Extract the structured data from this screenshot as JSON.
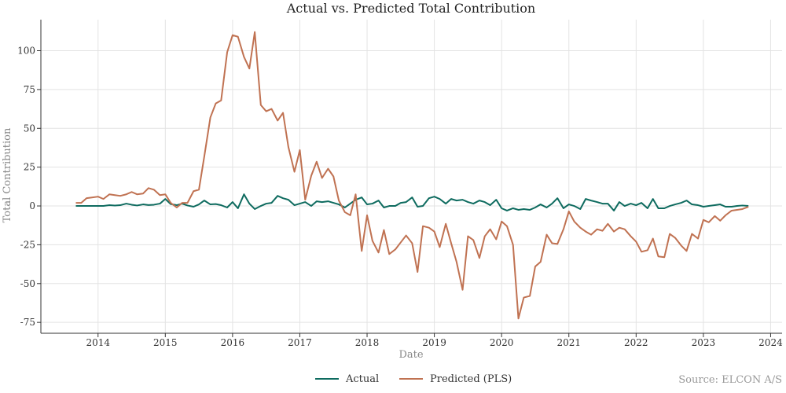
{
  "chart_data": {
    "type": "line",
    "title": "Actual vs. Predicted Total Contribution",
    "xlabel": "Date",
    "ylabel": "Total Contribution",
    "x_ticks": [
      "2014",
      "2015",
      "2016",
      "2017",
      "2018",
      "2019",
      "2020",
      "2021",
      "2022",
      "2023",
      "2024"
    ],
    "y_ticks": [
      -75,
      -50,
      -25,
      0,
      25,
      50,
      75,
      100
    ],
    "xlim": [
      2013.15,
      2024.17
    ],
    "ylim": [
      -82,
      120
    ],
    "grid": true,
    "legend_position": "bottom-center",
    "source": "Source: ELCON A/S",
    "series": [
      {
        "name": "Actual",
        "color": "#0e6b5f",
        "points": [
          [
            2013.67,
            0
          ],
          [
            2013.75,
            0
          ],
          [
            2013.83,
            0
          ],
          [
            2013.92,
            0
          ],
          [
            2014.0,
            0
          ],
          [
            2014.08,
            0
          ],
          [
            2014.17,
            0.5
          ],
          [
            2014.25,
            0.3
          ],
          [
            2014.33,
            0.5
          ],
          [
            2014.42,
            1.5
          ],
          [
            2014.5,
            0.8
          ],
          [
            2014.58,
            0.3
          ],
          [
            2014.67,
            1
          ],
          [
            2014.75,
            0.6
          ],
          [
            2014.83,
            0.8
          ],
          [
            2014.92,
            1.5
          ],
          [
            2015.0,
            4.5
          ],
          [
            2015.08,
            1.2
          ],
          [
            2015.17,
            0.5
          ],
          [
            2015.25,
            1.5
          ],
          [
            2015.33,
            0.3
          ],
          [
            2015.42,
            -0.5
          ],
          [
            2015.5,
            1
          ],
          [
            2015.58,
            3.5
          ],
          [
            2015.67,
            1
          ],
          [
            2015.75,
            1.2
          ],
          [
            2015.83,
            0.5
          ],
          [
            2015.92,
            -1
          ],
          [
            2016.0,
            2.5
          ],
          [
            2016.08,
            -1.5
          ],
          [
            2016.17,
            7.5
          ],
          [
            2016.25,
            1.5
          ],
          [
            2016.33,
            -2
          ],
          [
            2016.42,
            0
          ],
          [
            2016.5,
            1.5
          ],
          [
            2016.58,
            2
          ],
          [
            2016.67,
            6.5
          ],
          [
            2016.75,
            5
          ],
          [
            2016.83,
            4
          ],
          [
            2016.92,
            0.5
          ],
          [
            2017.0,
            1.5
          ],
          [
            2017.08,
            2.5
          ],
          [
            2017.17,
            0
          ],
          [
            2017.25,
            3
          ],
          [
            2017.33,
            2.5
          ],
          [
            2017.42,
            3
          ],
          [
            2017.5,
            2
          ],
          [
            2017.58,
            1
          ],
          [
            2017.67,
            -1
          ],
          [
            2017.75,
            1.5
          ],
          [
            2017.83,
            4
          ],
          [
            2017.92,
            5.5
          ],
          [
            2018.0,
            1
          ],
          [
            2018.08,
            1.5
          ],
          [
            2018.17,
            3.5
          ],
          [
            2018.25,
            -1
          ],
          [
            2018.33,
            0
          ],
          [
            2018.42,
            0
          ],
          [
            2018.5,
            2
          ],
          [
            2018.58,
            2.5
          ],
          [
            2018.67,
            5.5
          ],
          [
            2018.75,
            -0.5
          ],
          [
            2018.83,
            0
          ],
          [
            2018.92,
            5
          ],
          [
            2019.0,
            6
          ],
          [
            2019.08,
            4.5
          ],
          [
            2019.17,
            1.5
          ],
          [
            2019.25,
            4.5
          ],
          [
            2019.33,
            3.5
          ],
          [
            2019.42,
            4
          ],
          [
            2019.5,
            2.5
          ],
          [
            2019.58,
            1.5
          ],
          [
            2019.67,
            3.5
          ],
          [
            2019.75,
            2.5
          ],
          [
            2019.83,
            0.5
          ],
          [
            2019.92,
            4
          ],
          [
            2020.0,
            -1.5
          ],
          [
            2020.08,
            -3
          ],
          [
            2020.17,
            -1.5
          ],
          [
            2020.25,
            -2.5
          ],
          [
            2020.33,
            -2
          ],
          [
            2020.42,
            -2.5
          ],
          [
            2020.5,
            -1
          ],
          [
            2020.58,
            1
          ],
          [
            2020.67,
            -1
          ],
          [
            2020.75,
            1.5
          ],
          [
            2020.83,
            5
          ],
          [
            2020.92,
            -1.5
          ],
          [
            2021.0,
            1
          ],
          [
            2021.08,
            0
          ],
          [
            2021.17,
            -2
          ],
          [
            2021.25,
            4.5
          ],
          [
            2021.33,
            3.5
          ],
          [
            2021.42,
            2.5
          ],
          [
            2021.5,
            1.5
          ],
          [
            2021.58,
            1.5
          ],
          [
            2021.67,
            -3
          ],
          [
            2021.75,
            2.5
          ],
          [
            2021.83,
            0
          ],
          [
            2021.92,
            1.5
          ],
          [
            2022.0,
            0.5
          ],
          [
            2022.08,
            2
          ],
          [
            2022.17,
            -1.5
          ],
          [
            2022.25,
            4.5
          ],
          [
            2022.33,
            -1.5
          ],
          [
            2022.42,
            -1.5
          ],
          [
            2022.5,
            0
          ],
          [
            2022.58,
            1
          ],
          [
            2022.67,
            2
          ],
          [
            2022.75,
            3.5
          ],
          [
            2022.83,
            1
          ],
          [
            2022.92,
            0.5
          ],
          [
            2023.0,
            -0.5
          ],
          [
            2023.08,
            0
          ],
          [
            2023.17,
            0.5
          ],
          [
            2023.25,
            1
          ],
          [
            2023.33,
            -0.5
          ],
          [
            2023.42,
            -0.5
          ],
          [
            2023.5,
            0
          ],
          [
            2023.58,
            0.3
          ],
          [
            2023.67,
            0
          ]
        ]
      },
      {
        "name": "Predicted (PLS)",
        "color": "#c07252",
        "points": [
          [
            2013.67,
            2
          ],
          [
            2013.75,
            2
          ],
          [
            2013.83,
            5
          ],
          [
            2013.92,
            5.5
          ],
          [
            2014.0,
            6
          ],
          [
            2014.08,
            4.5
          ],
          [
            2014.17,
            7.5
          ],
          [
            2014.25,
            7
          ],
          [
            2014.33,
            6.5
          ],
          [
            2014.42,
            7.5
          ],
          [
            2014.5,
            9
          ],
          [
            2014.58,
            7.5
          ],
          [
            2014.67,
            8
          ],
          [
            2014.75,
            11.5
          ],
          [
            2014.83,
            10.5
          ],
          [
            2014.92,
            7
          ],
          [
            2015.0,
            7.5
          ],
          [
            2015.08,
            2
          ],
          [
            2015.17,
            -1
          ],
          [
            2015.25,
            2
          ],
          [
            2015.33,
            2
          ],
          [
            2015.42,
            9.5
          ],
          [
            2015.5,
            10.5
          ],
          [
            2015.58,
            32
          ],
          [
            2015.67,
            57
          ],
          [
            2015.75,
            66
          ],
          [
            2015.83,
            68
          ],
          [
            2015.92,
            99
          ],
          [
            2016.0,
            110
          ],
          [
            2016.08,
            109
          ],
          [
            2016.17,
            96
          ],
          [
            2016.25,
            88.5
          ],
          [
            2016.33,
            112
          ],
          [
            2016.42,
            65
          ],
          [
            2016.5,
            61
          ],
          [
            2016.58,
            62.5
          ],
          [
            2016.67,
            55
          ],
          [
            2016.75,
            60
          ],
          [
            2016.83,
            38
          ],
          [
            2016.92,
            22
          ],
          [
            2017.0,
            36
          ],
          [
            2017.08,
            4
          ],
          [
            2017.17,
            19.5
          ],
          [
            2017.25,
            28.5
          ],
          [
            2017.33,
            18
          ],
          [
            2017.42,
            24
          ],
          [
            2017.5,
            19
          ],
          [
            2017.58,
            3.5
          ],
          [
            2017.67,
            -4
          ],
          [
            2017.75,
            -6
          ],
          [
            2017.83,
            7.5
          ],
          [
            2017.92,
            -29
          ],
          [
            2018.0,
            -6
          ],
          [
            2018.08,
            -22.5
          ],
          [
            2018.17,
            -30
          ],
          [
            2018.25,
            -15.5
          ],
          [
            2018.33,
            -31
          ],
          [
            2018.42,
            -28
          ],
          [
            2018.5,
            -23.5
          ],
          [
            2018.58,
            -19
          ],
          [
            2018.67,
            -24
          ],
          [
            2018.75,
            -42.5
          ],
          [
            2018.83,
            -13
          ],
          [
            2018.92,
            -14
          ],
          [
            2019.0,
            -16.5
          ],
          [
            2019.08,
            -26.5
          ],
          [
            2019.17,
            -11.5
          ],
          [
            2019.25,
            -24
          ],
          [
            2019.33,
            -36
          ],
          [
            2019.42,
            -54
          ],
          [
            2019.5,
            -19.5
          ],
          [
            2019.58,
            -22
          ],
          [
            2019.67,
            -33.5
          ],
          [
            2019.75,
            -19.5
          ],
          [
            2019.83,
            -15
          ],
          [
            2019.92,
            -21.5
          ],
          [
            2020.0,
            -10
          ],
          [
            2020.08,
            -13
          ],
          [
            2020.17,
            -25
          ],
          [
            2020.25,
            -72.5
          ],
          [
            2020.33,
            -59
          ],
          [
            2020.42,
            -58
          ],
          [
            2020.5,
            -39
          ],
          [
            2020.58,
            -36
          ],
          [
            2020.67,
            -18.5
          ],
          [
            2020.75,
            -24
          ],
          [
            2020.83,
            -24.5
          ],
          [
            2020.92,
            -15
          ],
          [
            2021.0,
            -3.5
          ],
          [
            2021.08,
            -10
          ],
          [
            2021.17,
            -14
          ],
          [
            2021.25,
            -16.5
          ],
          [
            2021.33,
            -18.5
          ],
          [
            2021.42,
            -15
          ],
          [
            2021.5,
            -16
          ],
          [
            2021.58,
            -11.5
          ],
          [
            2021.67,
            -16.5
          ],
          [
            2021.75,
            -14
          ],
          [
            2021.83,
            -15
          ],
          [
            2021.92,
            -19.5
          ],
          [
            2022.0,
            -23
          ],
          [
            2022.08,
            -29.5
          ],
          [
            2022.17,
            -28.5
          ],
          [
            2022.25,
            -21
          ],
          [
            2022.33,
            -32.5
          ],
          [
            2022.42,
            -33
          ],
          [
            2022.5,
            -18
          ],
          [
            2022.58,
            -20.5
          ],
          [
            2022.67,
            -25.5
          ],
          [
            2022.75,
            -29
          ],
          [
            2022.83,
            -18
          ],
          [
            2022.92,
            -21
          ],
          [
            2023.0,
            -9
          ],
          [
            2023.08,
            -10.5
          ],
          [
            2023.17,
            -6.5
          ],
          [
            2023.25,
            -9.5
          ],
          [
            2023.33,
            -6
          ],
          [
            2023.42,
            -3
          ],
          [
            2023.5,
            -2.5
          ],
          [
            2023.58,
            -2
          ],
          [
            2023.67,
            -0.5
          ]
        ]
      }
    ]
  }
}
